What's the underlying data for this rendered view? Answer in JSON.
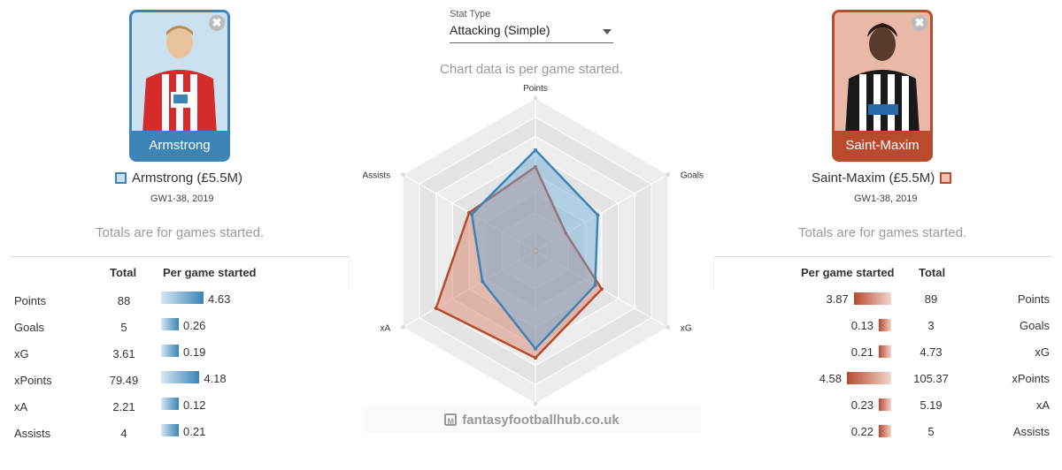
{
  "stat_type": {
    "label": "Stat Type",
    "value": "Attacking (Simple)"
  },
  "chart_note": "Chart data is per game started.",
  "watermark": "fantasyfootballhub.co.uk",
  "close_symbol": "✖",
  "colors": {
    "left": "#3b84b5",
    "left_fill": "#cbe1f0",
    "right": "#b84a2e",
    "right_fill": "#e9b8a9"
  },
  "left_player": {
    "card_name": "Armstrong",
    "legend": "Armstrong (£5.5M)",
    "period": "GW1-38, 2019",
    "totals_note": "Totals are for games started.",
    "headers": {
      "total": "Total",
      "per_game": "Per game started"
    },
    "rows": [
      {
        "label": "Points",
        "total": "88",
        "per_game": "4.63"
      },
      {
        "label": "Goals",
        "total": "5",
        "per_game": "0.26"
      },
      {
        "label": "xG",
        "total": "3.61",
        "per_game": "0.19"
      },
      {
        "label": "xPoints",
        "total": "79.49",
        "per_game": "4.18"
      },
      {
        "label": "xA",
        "total": "2.21",
        "per_game": "0.12"
      },
      {
        "label": "Assists",
        "total": "4",
        "per_game": "0.21"
      }
    ]
  },
  "right_player": {
    "card_name": "Saint-Maxim",
    "legend": "Saint-Maxim (£5.5M)",
    "period": "GW1-38, 2019",
    "totals_note": "Totals are for games started.",
    "headers": {
      "total": "Total",
      "per_game": "Per game started"
    },
    "rows": [
      {
        "label": "Points",
        "total": "89",
        "per_game": "3.87"
      },
      {
        "label": "Goals",
        "total": "3",
        "per_game": "0.13"
      },
      {
        "label": "xG",
        "total": "4.73",
        "per_game": "0.21"
      },
      {
        "label": "xPoints",
        "total": "105.37",
        "per_game": "4.58"
      },
      {
        "label": "xA",
        "total": "5.19",
        "per_game": "0.23"
      },
      {
        "label": "Assists",
        "total": "5",
        "per_game": "0.22"
      }
    ]
  },
  "chart_data": {
    "type": "radar",
    "axes": [
      "Points",
      "Goals",
      "xG",
      "xPoints",
      "xA",
      "Assists"
    ],
    "rings": 8,
    "grid": true,
    "series": [
      {
        "name": "Armstrong (£5.5M)",
        "values": [
          0.66,
          0.47,
          0.45,
          0.64,
          0.4,
          0.48
        ]
      },
      {
        "name": "Saint-Maxim (£5.5M)",
        "values": [
          0.55,
          0.23,
          0.5,
          0.7,
          0.75,
          0.5
        ]
      }
    ]
  }
}
